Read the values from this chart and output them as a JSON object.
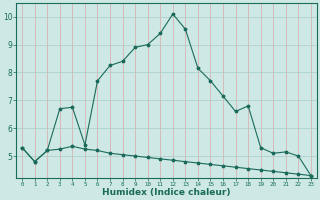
{
  "xlabel": "Humidex (Indice chaleur)",
  "x_values": [
    0,
    1,
    2,
    3,
    4,
    5,
    6,
    7,
    8,
    9,
    10,
    11,
    12,
    13,
    14,
    15,
    16,
    17,
    18,
    19,
    20,
    21,
    22,
    23
  ],
  "line1_y": [
    5.3,
    4.8,
    5.2,
    5.25,
    5.35,
    5.25,
    5.2,
    5.1,
    5.05,
    5.0,
    4.95,
    4.9,
    4.85,
    4.8,
    4.75,
    4.7,
    4.65,
    4.6,
    4.55,
    4.5,
    4.45,
    4.4,
    4.35,
    4.3
  ],
  "line2_y": [
    5.3,
    4.8,
    5.2,
    6.7,
    6.75,
    5.4,
    7.7,
    8.25,
    8.4,
    8.9,
    9.0,
    9.4,
    10.1,
    9.55,
    8.15,
    7.7,
    7.15,
    6.6,
    6.8,
    5.3,
    5.1,
    5.15,
    5.0,
    4.3
  ],
  "bg_color": "#cde8e5",
  "line_color": "#1a6b5a",
  "hgrid_color": "#a8ccca",
  "vgrid_color": "#dba8a8",
  "ylim": [
    4.2,
    10.5
  ],
  "yticks": [
    5,
    6,
    7,
    8,
    9,
    10
  ],
  "xticks": [
    0,
    1,
    2,
    3,
    4,
    5,
    6,
    7,
    8,
    9,
    10,
    11,
    12,
    13,
    14,
    15,
    16,
    17,
    18,
    19,
    20,
    21,
    22,
    23
  ],
  "xlabel_fontsize": 6.5,
  "xtick_fontsize": 4.2,
  "ytick_fontsize": 5.5
}
